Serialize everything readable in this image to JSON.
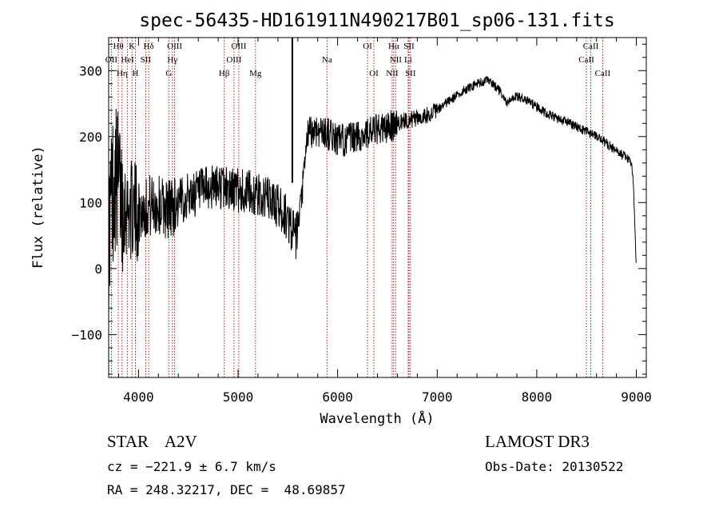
{
  "chart_data": {
    "type": "line",
    "title": "spec-56435-HD161911N490217B01_sp06-131.fits",
    "xlabel": "Wavelength (Å)",
    "ylabel": "Flux (relative)",
    "xlim": [
      3700,
      9100
    ],
    "ylim": [
      -165,
      350
    ],
    "x_ticks": [
      4000,
      5000,
      6000,
      7000,
      8000,
      9000
    ],
    "y_ticks": [
      -100,
      0,
      100,
      200,
      300
    ],
    "x_tick_labels": [
      "4000",
      "5000",
      "6000",
      "7000",
      "8000",
      "9000"
    ],
    "y_tick_labels": [
      "−100",
      "0",
      "100",
      "200",
      "300"
    ],
    "grid": false,
    "spike": {
      "x": 5545,
      "y_min": 130,
      "y_max": 350
    },
    "spectrum_anchors": [
      [
        3700,
        40
      ],
      [
        3720,
        100
      ],
      [
        3760,
        140
      ],
      [
        3800,
        130
      ],
      [
        3850,
        95
      ],
      [
        3900,
        90
      ],
      [
        4000,
        85
      ],
      [
        4100,
        95
      ],
      [
        4200,
        95
      ],
      [
        4300,
        92
      ],
      [
        4400,
        100
      ],
      [
        4500,
        110
      ],
      [
        4600,
        115
      ],
      [
        4700,
        120
      ],
      [
        4800,
        125
      ],
      [
        4900,
        122
      ],
      [
        5000,
        118
      ],
      [
        5100,
        115
      ],
      [
        5200,
        110
      ],
      [
        5300,
        105
      ],
      [
        5400,
        95
      ],
      [
        5450,
        85
      ],
      [
        5500,
        75
      ],
      [
        5580,
        45
      ],
      [
        5620,
        80
      ],
      [
        5660,
        140
      ],
      [
        5700,
        205
      ],
      [
        5800,
        210
      ],
      [
        5900,
        205
      ],
      [
        6000,
        195
      ],
      [
        6100,
        195
      ],
      [
        6200,
        200
      ],
      [
        6300,
        205
      ],
      [
        6400,
        210
      ],
      [
        6500,
        213
      ],
      [
        6600,
        220
      ],
      [
        6700,
        225
      ],
      [
        6800,
        228
      ],
      [
        6900,
        233
      ],
      [
        7000,
        240
      ],
      [
        7100,
        252
      ],
      [
        7200,
        262
      ],
      [
        7300,
        273
      ],
      [
        7400,
        280
      ],
      [
        7500,
        285
      ],
      [
        7600,
        275
      ],
      [
        7700,
        250
      ],
      [
        7800,
        262
      ],
      [
        7900,
        255
      ],
      [
        8000,
        245
      ],
      [
        8100,
        235
      ],
      [
        8200,
        228
      ],
      [
        8300,
        222
      ],
      [
        8400,
        215
      ],
      [
        8500,
        208
      ],
      [
        8600,
        200
      ],
      [
        8700,
        190
      ],
      [
        8800,
        178
      ],
      [
        8900,
        168
      ],
      [
        8950,
        160
      ],
      [
        8970,
        130
      ],
      [
        8990,
        40
      ],
      [
        9000,
        5
      ]
    ],
    "lines": [
      {
        "label": "Hθ",
        "x": 3797,
        "row": 0
      },
      {
        "label": "K",
        "x": 3934,
        "row": 0
      },
      {
        "label": "Hδ",
        "x": 4102,
        "row": 0
      },
      {
        "label": "OIII",
        "x": 4363,
        "row": 0
      },
      {
        "label": "OIII",
        "x": 5007,
        "row": 0
      },
      {
        "label": "OI",
        "x": 6300,
        "row": 0
      },
      {
        "label": "Hα",
        "x": 6563,
        "row": 0
      },
      {
        "label": "SII",
        "x": 6717,
        "row": 0
      },
      {
        "label": "CaII",
        "x": 8542,
        "row": 0
      },
      {
        "label": "OII",
        "x": 3727,
        "row": 1
      },
      {
        "label": "HeI",
        "x": 3889,
        "row": 1
      },
      {
        "label": "SII",
        "x": 4072,
        "row": 1
      },
      {
        "label": "Hγ",
        "x": 4340,
        "row": 1
      },
      {
        "label": "OIII",
        "x": 4959,
        "row": 1
      },
      {
        "label": "Na",
        "x": 5893,
        "row": 1
      },
      {
        "label": "NII",
        "x": 6583,
        "row": 1
      },
      {
        "label": "Li",
        "x": 6708,
        "row": 1
      },
      {
        "label": "CaII",
        "x": 8498,
        "row": 1
      },
      {
        "label": "Hη",
        "x": 3835,
        "row": 2
      },
      {
        "label": "H",
        "x": 3969,
        "row": 2
      },
      {
        "label": "G",
        "x": 4304,
        "row": 2
      },
      {
        "label": "Hβ",
        "x": 4861,
        "row": 2
      },
      {
        "label": "Mg",
        "x": 5175,
        "row": 2
      },
      {
        "label": "OI",
        "x": 6364,
        "row": 2
      },
      {
        "label": "NII",
        "x": 6548,
        "row": 2
      },
      {
        "label": "SII",
        "x": 6731,
        "row": 2
      },
      {
        "label": "CaII",
        "x": 8662,
        "row": 2
      }
    ]
  },
  "info": {
    "class_line": "STAR    A2V",
    "survey": "LAMOST DR3",
    "cz_line": "cz = −221.9 ± 6.7 km/s",
    "obs_date": "Obs-Date: 20130522",
    "radec_line": "RA = 248.32217, DEC =  48.69857"
  }
}
